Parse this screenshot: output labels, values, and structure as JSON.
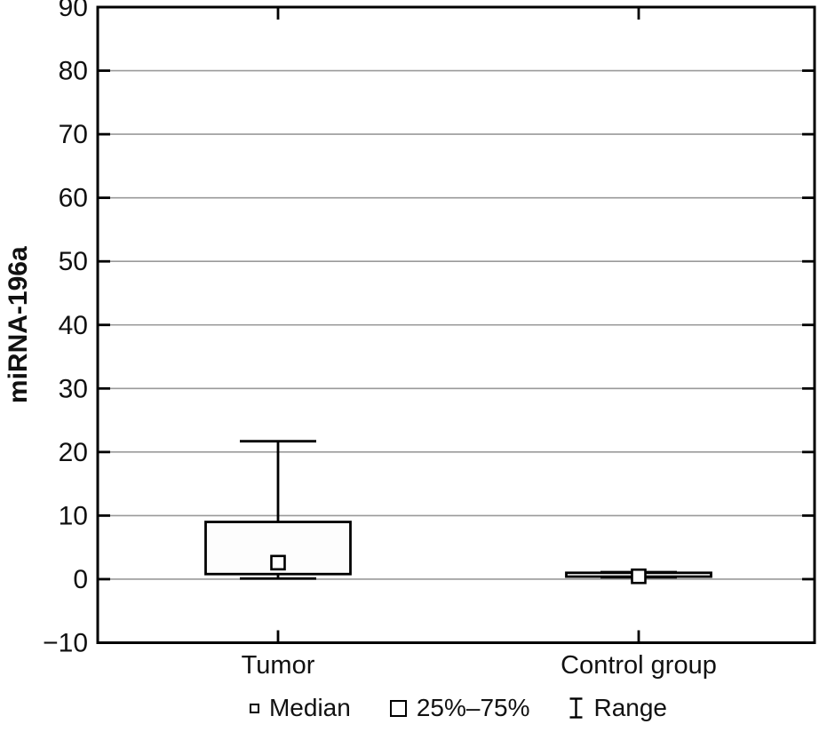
{
  "chart_data": {
    "type": "boxplot",
    "title": "",
    "xlabel": "",
    "ylabel": "miRNA-196a",
    "ylim": [
      -10,
      90
    ],
    "grid": "horizontal",
    "y_ticks": [
      {
        "value": 90,
        "label": "90"
      },
      {
        "value": 80,
        "label": "80"
      },
      {
        "value": 70,
        "label": "70"
      },
      {
        "value": 60,
        "label": "60"
      },
      {
        "value": 50,
        "label": "50"
      },
      {
        "value": 40,
        "label": "40"
      },
      {
        "value": 30,
        "label": "30"
      },
      {
        "value": 20,
        "label": "20"
      },
      {
        "value": 10,
        "label": "10"
      },
      {
        "value": 0,
        "label": "0"
      },
      {
        "value": -10,
        "label": "−10"
      }
    ],
    "categories": [
      "Tumor",
      "Control group"
    ],
    "series": [
      {
        "category": "Tumor",
        "min": 0.1,
        "q1": 0.8,
        "median": 2.6,
        "q3": 9.0,
        "max": 21.7
      },
      {
        "category": "Control group",
        "min": 0.3,
        "q1": 0.4,
        "median": 0.45,
        "q3": 1.0,
        "max": 1.1
      }
    ],
    "legend": [
      {
        "symbol": "median-square",
        "label": "Median"
      },
      {
        "symbol": "box",
        "label": "25%–75%"
      },
      {
        "symbol": "range-ibeam",
        "label": "Range"
      }
    ],
    "legend_position": "bottom-center",
    "colors": {
      "line": "#000000",
      "gridline": "#9a9a9a",
      "box_fill": "#fdfdfd",
      "marker_fill": "#ffffff",
      "text": "#111111",
      "background": "#ffffff"
    }
  }
}
